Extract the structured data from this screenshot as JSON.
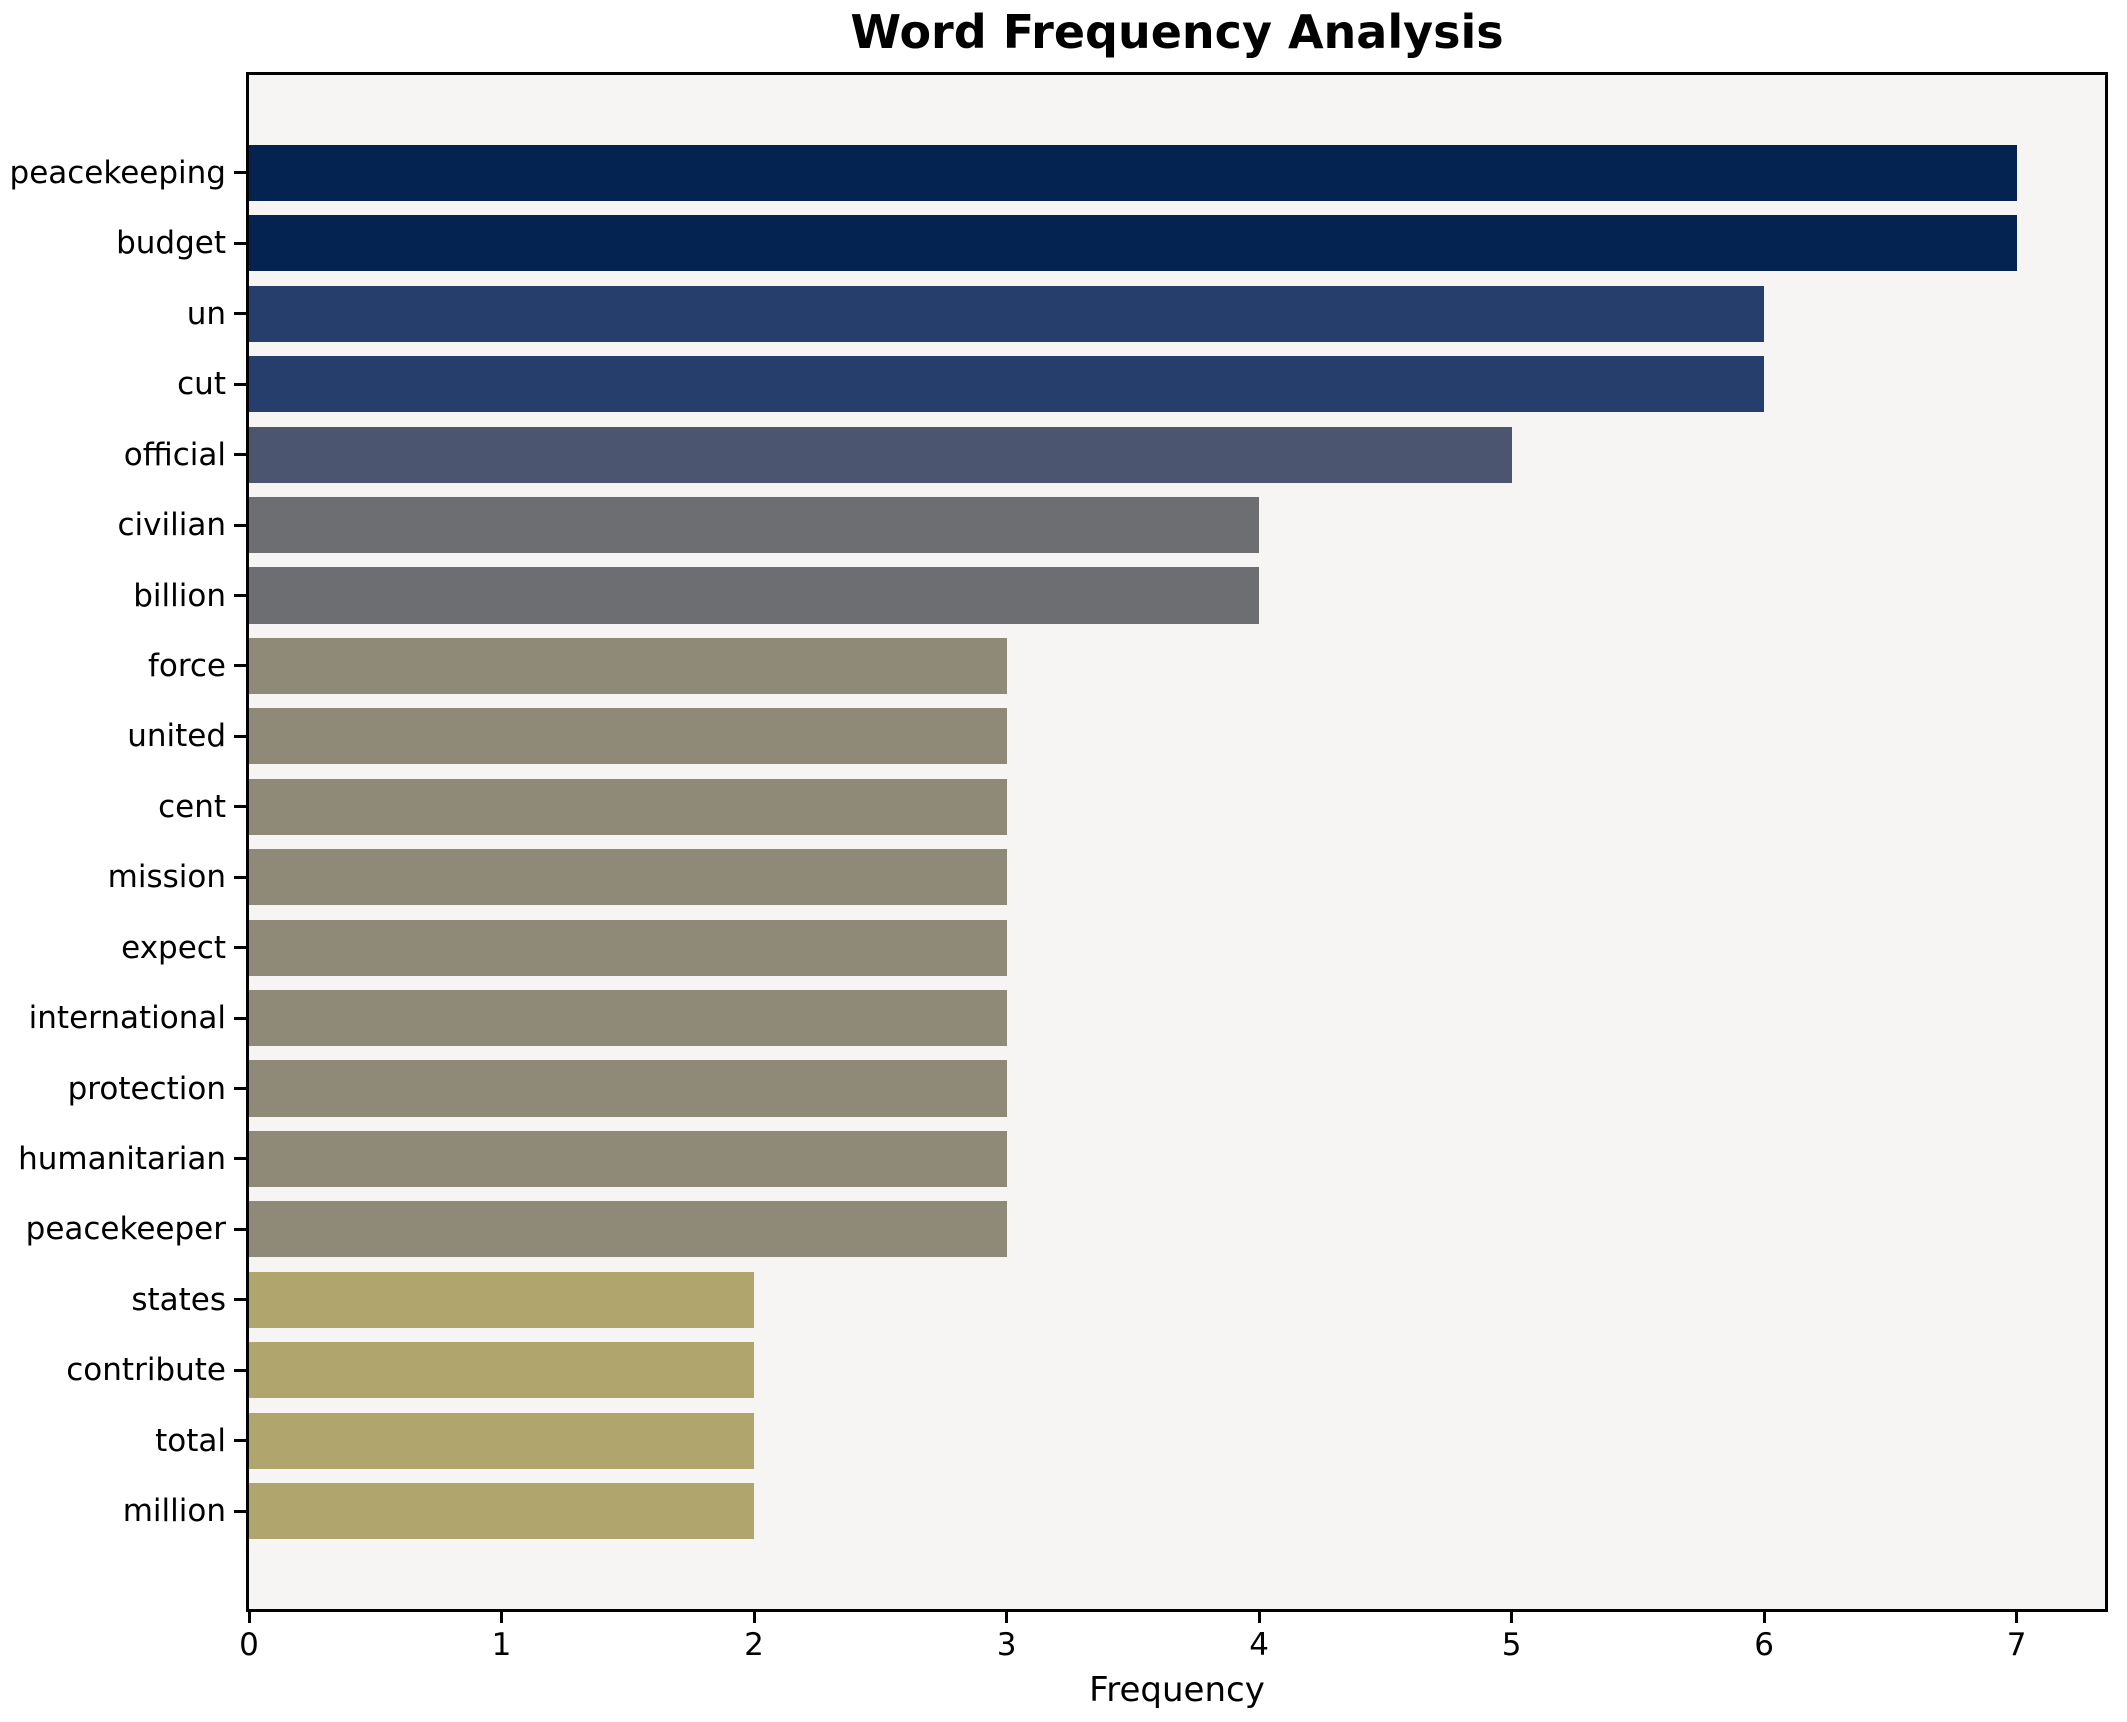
{
  "chart_data": {
    "type": "bar",
    "orientation": "horizontal",
    "title": "Word Frequency Analysis",
    "xlabel": "Frequency",
    "ylabel": "",
    "categories": [
      "peacekeeping",
      "budget",
      "un",
      "cut",
      "official",
      "civilian",
      "billion",
      "force",
      "united",
      "cent",
      "mission",
      "expect",
      "international",
      "protection",
      "humanitarian",
      "peacekeeper",
      "states",
      "contribute",
      "total",
      "million"
    ],
    "values": [
      7,
      7,
      6,
      6,
      5,
      4,
      4,
      3,
      3,
      3,
      3,
      3,
      3,
      3,
      3,
      3,
      2,
      2,
      2,
      2
    ],
    "bar_colors": [
      "#042350",
      "#042350",
      "#253e6c",
      "#253e6c",
      "#4b556f",
      "#6c6e71",
      "#6c6e71",
      "#8f8a77",
      "#8f8a77",
      "#8f8a77",
      "#8f8a77",
      "#8f8a77",
      "#8f8a77",
      "#8f8a77",
      "#8f8a77",
      "#8f8a77",
      "#b1a56e",
      "#b1a56e",
      "#b1a56e",
      "#b1a56e"
    ],
    "x_ticks": [
      "0",
      "1",
      "2",
      "3",
      "4",
      "5",
      "6",
      "7"
    ],
    "xlim": [
      0,
      7.35
    ],
    "grid": false,
    "legend": null,
    "colors": {
      "figure_background": "#ffffff",
      "axes_background": "#f6f5f4",
      "spine": "#000000",
      "text": "#000000"
    }
  }
}
